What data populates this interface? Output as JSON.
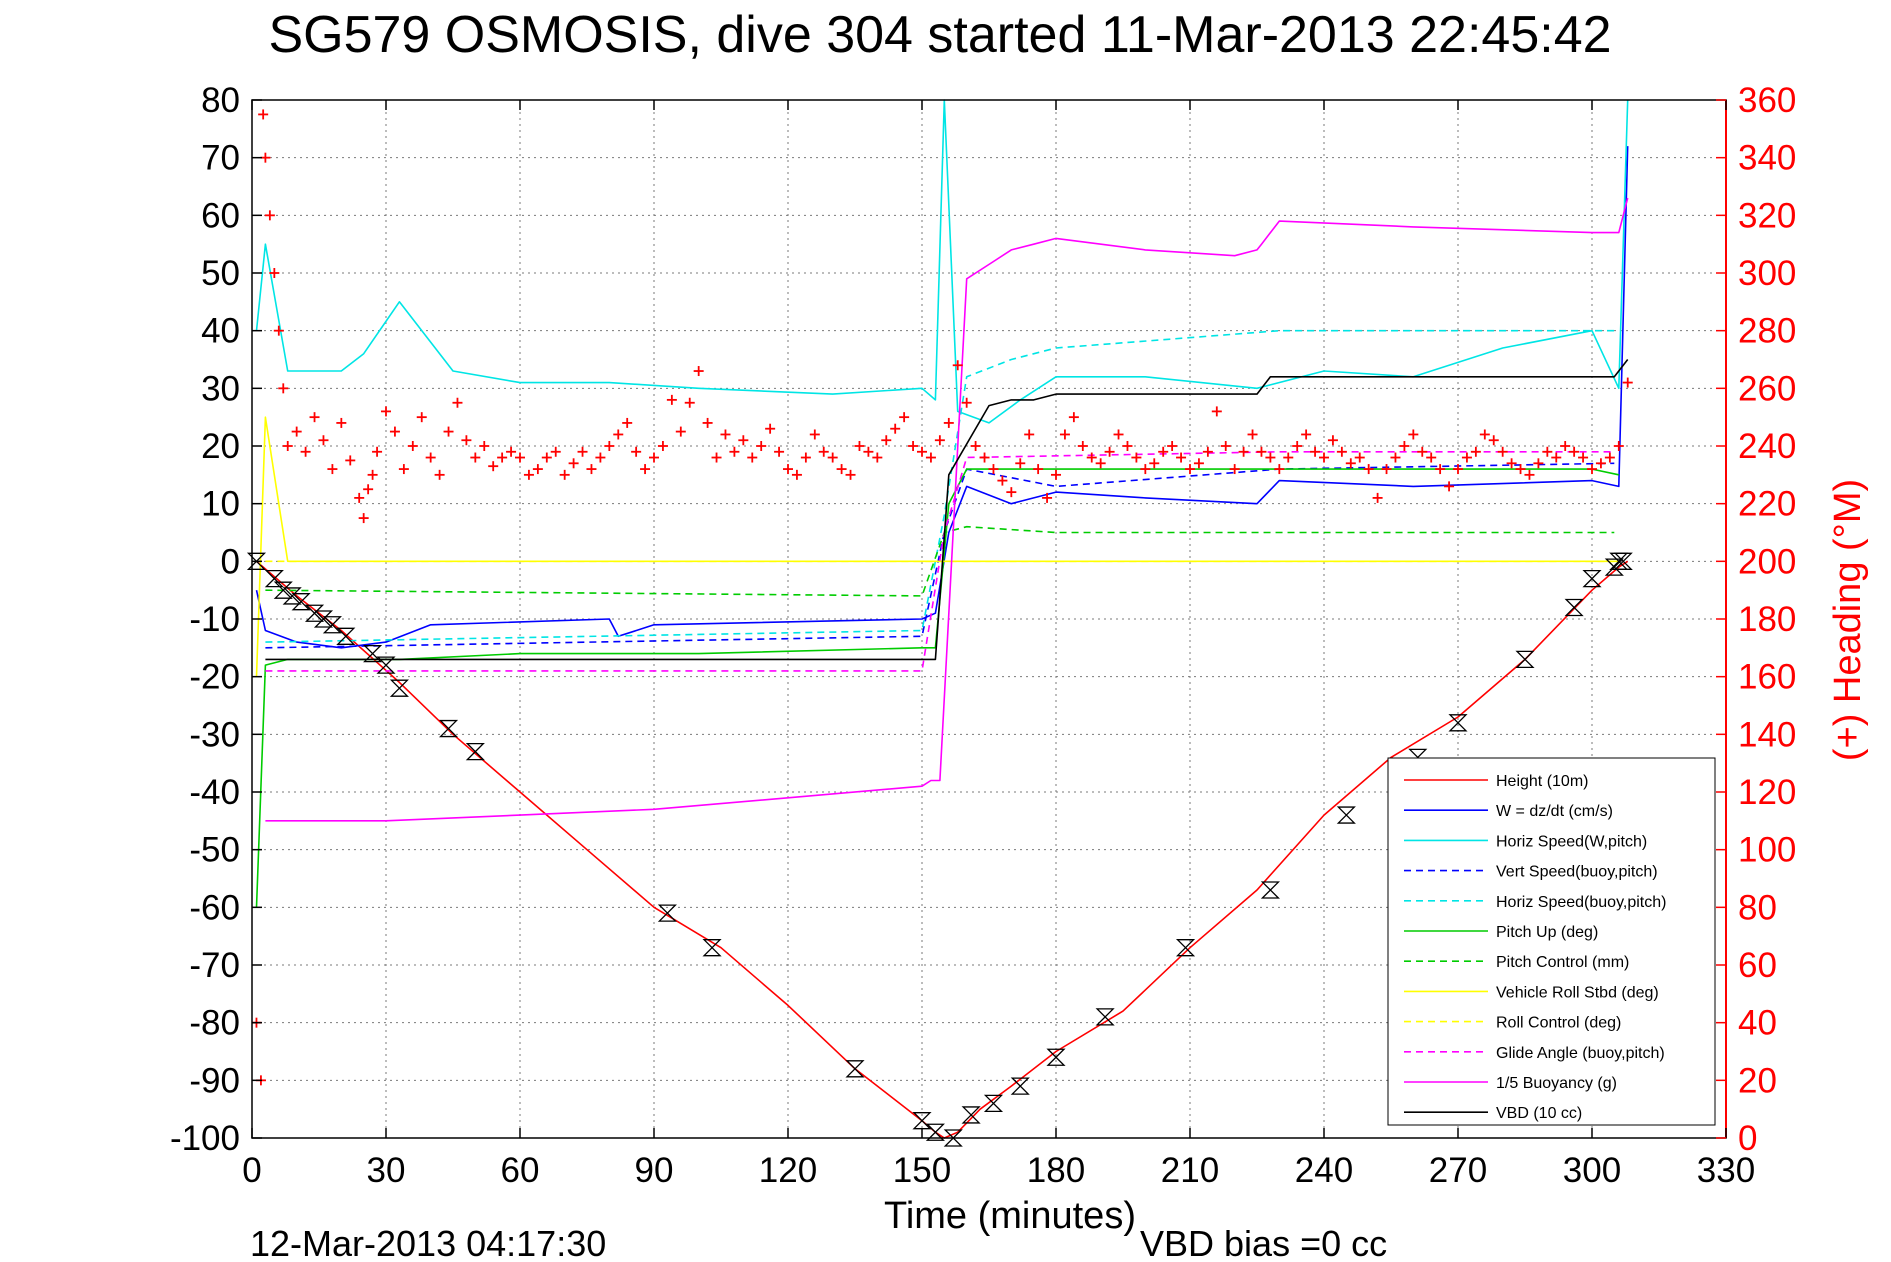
{
  "chart_data": {
    "type": "line",
    "title": "SG579 OSMOSIS, dive 304 started 11-Mar-2013 22:45:42",
    "xlabel": "Time (minutes)",
    "ylabel": "",
    "y2label": "(+) Heading (°M)",
    "footer_left": "12-Mar-2013 04:17:30",
    "footer_right": "VBD bias =0 cc",
    "xlim": [
      0,
      330
    ],
    "ylim": [
      -100,
      80
    ],
    "y2lim": [
      0,
      360
    ],
    "xticks": [
      0,
      30,
      60,
      90,
      120,
      150,
      180,
      210,
      240,
      270,
      300,
      330
    ],
    "yticks": [
      -100,
      -90,
      -80,
      -70,
      -60,
      -50,
      -40,
      -30,
      -20,
      -10,
      0,
      10,
      20,
      30,
      40,
      50,
      60,
      70,
      80
    ],
    "y2ticks": [
      0,
      20,
      40,
      60,
      80,
      100,
      120,
      140,
      160,
      180,
      200,
      220,
      240,
      260,
      280,
      300,
      320,
      340,
      360
    ],
    "grid": true,
    "legend_position": "bottom-right",
    "axis_color_right": "#ff0000",
    "series": [
      {
        "name": "Height (10m)",
        "color": "#ff0000",
        "style": "solid",
        "x": [
          1,
          10,
          20,
          33,
          45,
          60,
          75,
          90,
          105,
          120,
          135,
          150,
          153,
          155,
          158,
          163,
          170,
          180,
          195,
          210,
          225,
          240,
          255,
          270,
          285,
          300,
          306,
          308
        ],
        "y": [
          0,
          -6,
          -12,
          -21,
          -30,
          -40,
          -50,
          -60,
          -67,
          -77,
          -88,
          -97,
          -99,
          -100,
          -99,
          -95,
          -91,
          -85,
          -78,
          -67,
          -57,
          -44,
          -34,
          -27,
          -17,
          -5,
          -1,
          0
        ]
      },
      {
        "name": "W = dz/dt (cm/s)",
        "color": "#0000ff",
        "style": "solid",
        "x": [
          1,
          3,
          10,
          20,
          30,
          40,
          80,
          82,
          90,
          150,
          153,
          156,
          160,
          170,
          180,
          200,
          225,
          230,
          260,
          300,
          306,
          308
        ],
        "y": [
          -5,
          -12,
          -14,
          -15,
          -14,
          -11,
          -10,
          -13,
          -11,
          -10,
          -9,
          5,
          13,
          10,
          12,
          11,
          10,
          14,
          13,
          14,
          13,
          72
        ]
      },
      {
        "name": "Horiz Speed(W,pitch)",
        "color": "#00e5e5",
        "style": "solid",
        "x": [
          1,
          3,
          8,
          20,
          25,
          33,
          45,
          60,
          80,
          100,
          130,
          150,
          153,
          155,
          158,
          165,
          172,
          180,
          200,
          225,
          240,
          260,
          280,
          300,
          306,
          308
        ],
        "y": [
          40,
          55,
          33,
          33,
          36,
          45,
          33,
          31,
          31,
          30,
          29,
          30,
          28,
          80,
          26,
          24,
          28,
          32,
          32,
          30,
          33,
          32,
          37,
          40,
          30,
          80
        ]
      },
      {
        "name": "Vert Speed(buoy,pitch)",
        "color": "#0000ff",
        "style": "dashed",
        "x": [
          3,
          150,
          155,
          160,
          180,
          230,
          305
        ],
        "y": [
          -15,
          -13,
          5,
          16,
          13,
          16,
          17
        ]
      },
      {
        "name": "Horiz Speed(buoy,pitch)",
        "color": "#00e5e5",
        "style": "dashed",
        "x": [
          3,
          150,
          155,
          160,
          170,
          180,
          230,
          305
        ],
        "y": [
          -14,
          -12,
          8,
          32,
          35,
          37,
          40,
          40
        ]
      },
      {
        "name": "Pitch Up (deg)",
        "color": "#00cc00",
        "style": "solid",
        "x": [
          1,
          3,
          8,
          20,
          33,
          60,
          80,
          100,
          150,
          153,
          156,
          160,
          180,
          230,
          300,
          306
        ],
        "y": [
          -60,
          -18,
          -17,
          -17,
          -17,
          -16,
          -16,
          -16,
          -15,
          -15,
          10,
          16,
          16,
          16,
          16,
          15
        ]
      },
      {
        "name": "Pitch Control (mm)",
        "color": "#00cc00",
        "style": "dashed",
        "x": [
          3,
          150,
          155,
          160,
          180,
          230,
          305
        ],
        "y": [
          -5,
          -6,
          5,
          6,
          5,
          5,
          5
        ]
      },
      {
        "name": "Vehicle Roll Stbd (deg)",
        "color": "#ffff00",
        "style": "solid",
        "x": [
          1,
          3,
          8,
          20,
          33,
          60,
          100,
          150,
          155,
          160,
          200,
          250,
          300,
          306
        ],
        "y": [
          -20,
          25,
          0,
          0,
          0,
          0,
          0,
          0,
          0,
          0,
          0,
          0,
          0,
          0
        ]
      },
      {
        "name": "Roll Control (deg)",
        "color": "#ffff00",
        "style": "dashed",
        "x": [
          3,
          150,
          305
        ],
        "y": [
          0,
          0,
          0
        ]
      },
      {
        "name": "Glide Angle (buoy,pitch)",
        "color": "#ff00ff",
        "style": "dashed",
        "x": [
          3,
          60,
          150,
          155,
          160,
          230,
          305
        ],
        "y": [
          -19,
          -19,
          -19,
          5,
          18,
          19,
          19
        ]
      },
      {
        "name": "1/5 Buoyancy (g)",
        "color": "#ff00ff",
        "style": "solid",
        "x": [
          3,
          30,
          60,
          90,
          120,
          150,
          152,
          154,
          160,
          166,
          170,
          175,
          180,
          200,
          220,
          225,
          226,
          230,
          260,
          300,
          306,
          308
        ],
        "y": [
          -45,
          -45,
          -44,
          -43,
          -41,
          -39,
          -38,
          -38,
          49,
          52,
          54,
          55,
          56,
          54,
          53,
          54,
          55,
          59,
          58,
          57,
          57,
          63
        ]
      },
      {
        "name": "VBD (10 cc)",
        "color": "#000000",
        "style": "solid",
        "x": [
          3,
          30,
          60,
          90,
          120,
          150,
          153,
          156,
          165,
          170,
          175,
          180,
          190,
          210,
          225,
          228,
          230,
          260,
          300,
          305,
          306,
          308
        ],
        "y": [
          -17,
          -17,
          -17,
          -17,
          -17,
          -17,
          -17,
          15,
          27,
          28,
          28,
          29,
          29,
          29,
          29,
          32,
          32,
          32,
          32,
          32,
          33,
          35
        ]
      }
    ],
    "heading_marks": {
      "name": "(+) Heading",
      "color": "#ff0000",
      "marker": "+",
      "x": [
        1,
        2,
        2.5,
        3,
        4,
        5,
        6,
        7,
        8,
        10,
        12,
        14,
        16,
        18,
        20,
        22,
        24,
        25,
        26,
        27,
        28,
        30,
        32,
        34,
        36,
        38,
        40,
        42,
        44,
        46,
        48,
        50,
        52,
        54,
        56,
        58,
        60,
        62,
        64,
        66,
        68,
        70,
        72,
        74,
        76,
        78,
        80,
        82,
        84,
        86,
        88,
        90,
        92,
        94,
        96,
        98,
        100,
        102,
        104,
        106,
        108,
        110,
        112,
        114,
        116,
        118,
        120,
        122,
        124,
        126,
        128,
        130,
        132,
        134,
        136,
        138,
        140,
        142,
        144,
        146,
        148,
        150,
        152,
        154,
        156,
        158,
        160,
        162,
        164,
        166,
        168,
        170,
        172,
        174,
        176,
        178,
        180,
        182,
        184,
        186,
        188,
        190,
        192,
        194,
        196,
        198,
        200,
        202,
        204,
        206,
        208,
        210,
        212,
        214,
        216,
        218,
        220,
        222,
        224,
        226,
        228,
        230,
        232,
        234,
        236,
        238,
        240,
        242,
        244,
        246,
        248,
        250,
        252,
        254,
        256,
        258,
        260,
        262,
        264,
        266,
        268,
        270,
        272,
        274,
        276,
        278,
        280,
        282,
        284,
        286,
        288,
        290,
        292,
        294,
        296,
        298,
        300,
        302,
        304,
        306,
        308
      ],
      "y": [
        40,
        20,
        355,
        340,
        320,
        300,
        280,
        260,
        240,
        245,
        238,
        250,
        242,
        232,
        248,
        235,
        222,
        215,
        225,
        230,
        238,
        252,
        245,
        232,
        240,
        250,
        236,
        230,
        245,
        255,
        242,
        236,
        240,
        233,
        236,
        238,
        236,
        230,
        232,
        236,
        238,
        230,
        234,
        238,
        232,
        236,
        240,
        244,
        248,
        238,
        232,
        236,
        240,
        256,
        245,
        255,
        266,
        248,
        236,
        244,
        238,
        242,
        236,
        240,
        246,
        238,
        232,
        230,
        236,
        244,
        238,
        236,
        232,
        230,
        240,
        238,
        236,
        242,
        246,
        250,
        240,
        238,
        236,
        242,
        248,
        268,
        255,
        240,
        236,
        232,
        228,
        224,
        234,
        244,
        232,
        222,
        230,
        244,
        250,
        240,
        236,
        234,
        238,
        244,
        240,
        236,
        232,
        234,
        238,
        240,
        236,
        232,
        234,
        238,
        252,
        240,
        232,
        238,
        244,
        238,
        236,
        232,
        236,
        240,
        244,
        238,
        236,
        242,
        238,
        234,
        236,
        232,
        222,
        232,
        236,
        240,
        244,
        238,
        236,
        232,
        226,
        232,
        236,
        238,
        244,
        242,
        238,
        234,
        232,
        230,
        234,
        238,
        236,
        240,
        238,
        236,
        232,
        234,
        236,
        240,
        262
      ]
    },
    "sample_markers": {
      "name": "samples",
      "color": "#000000",
      "marker": "hourglass",
      "x": [
        1,
        5,
        7,
        9,
        11,
        14,
        16,
        18,
        21,
        27,
        30,
        33,
        44,
        50,
        93,
        103,
        135,
        150,
        153,
        157,
        161,
        166,
        172,
        180,
        191,
        209,
        228,
        245,
        261,
        270,
        285,
        296,
        300,
        305,
        306,
        307
      ],
      "y": [
        0,
        -3,
        -5,
        -6,
        -7,
        -9,
        -10,
        -11,
        -13,
        -16,
        -18,
        -22,
        -29,
        -33,
        -61,
        -67,
        -88,
        -97,
        -99,
        -100,
        -96,
        -94,
        -91,
        -86,
        -79,
        -67,
        -57,
        -44,
        -34,
        -28,
        -17,
        -8,
        -3,
        -1,
        0,
        0
      ]
    }
  }
}
